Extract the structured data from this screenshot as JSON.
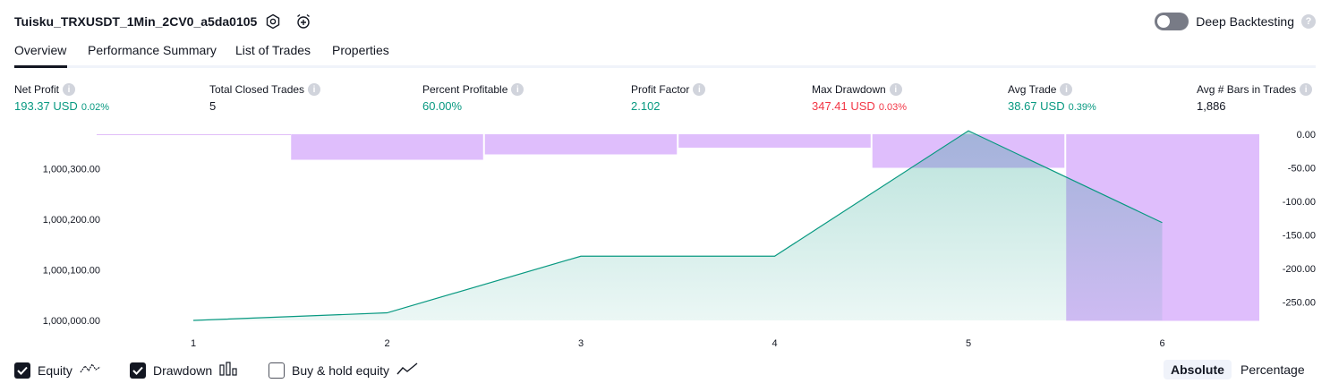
{
  "header": {
    "title": "Tuisku_TRXUSDT_1Min_2CV0_a5da0105",
    "deep_backtesting_label": "Deep Backtesting",
    "deep_backtesting_on": false
  },
  "tabs": [
    {
      "label": "Overview",
      "active": true
    },
    {
      "label": "Performance Summary",
      "active": false
    },
    {
      "label": "List of Trades",
      "active": false
    },
    {
      "label": "Properties",
      "active": false
    }
  ],
  "stats": [
    {
      "label": "Net Profit",
      "value": "193.37 USD",
      "pct": "0.02%",
      "color": "green"
    },
    {
      "label": "Total Closed Trades",
      "value": "5",
      "pct": "",
      "color": "black"
    },
    {
      "label": "Percent Profitable",
      "value": "60.00%",
      "pct": "",
      "color": "green"
    },
    {
      "label": "Profit Factor",
      "value": "2.102",
      "pct": "",
      "color": "green"
    },
    {
      "label": "Max Drawdown",
      "value": "347.41 USD",
      "pct": "0.03%",
      "color": "red"
    },
    {
      "label": "Avg Trade",
      "value": "38.67 USD",
      "pct": "0.39%",
      "color": "green"
    },
    {
      "label": "Avg # Bars in Trades",
      "value": "1,886",
      "pct": "",
      "color": "black"
    }
  ],
  "chart_data": {
    "type": "line",
    "x": [
      1,
      2,
      3,
      4,
      5,
      6
    ],
    "equity": {
      "name": "Equity",
      "values": [
        1000000.0,
        1000015.0,
        1000127.0,
        1000127.0,
        1000375.0,
        1000193.37
      ],
      "color": "#089981"
    },
    "drawdown": {
      "name": "Drawdown",
      "values": [
        -38,
        -30,
        -20,
        -50,
        -278
      ],
      "color": "#d9b3fb"
    },
    "left_axis_ticks": [
      "1,000,300.00",
      "1,000,200.00",
      "1,000,100.00",
      "1,000,000.00"
    ],
    "left_axis_values": [
      1000300,
      1000200,
      1000100,
      1000000
    ],
    "right_axis_ticks": [
      "0.00",
      "-50.00",
      "-100.00",
      "-150.00",
      "-200.00",
      "-250.00"
    ],
    "right_axis_values": [
      0,
      -50,
      -100,
      -150,
      -200,
      -250
    ],
    "x_tick_labels": [
      "1",
      "2",
      "3",
      "4",
      "5",
      "6"
    ]
  },
  "footer": {
    "equity_label": "Equity",
    "equity_checked": true,
    "drawdown_label": "Drawdown",
    "drawdown_checked": true,
    "buyhold_label": "Buy & hold equity",
    "buyhold_checked": false,
    "absolute_label": "Absolute",
    "percentage_label": "Percentage"
  }
}
